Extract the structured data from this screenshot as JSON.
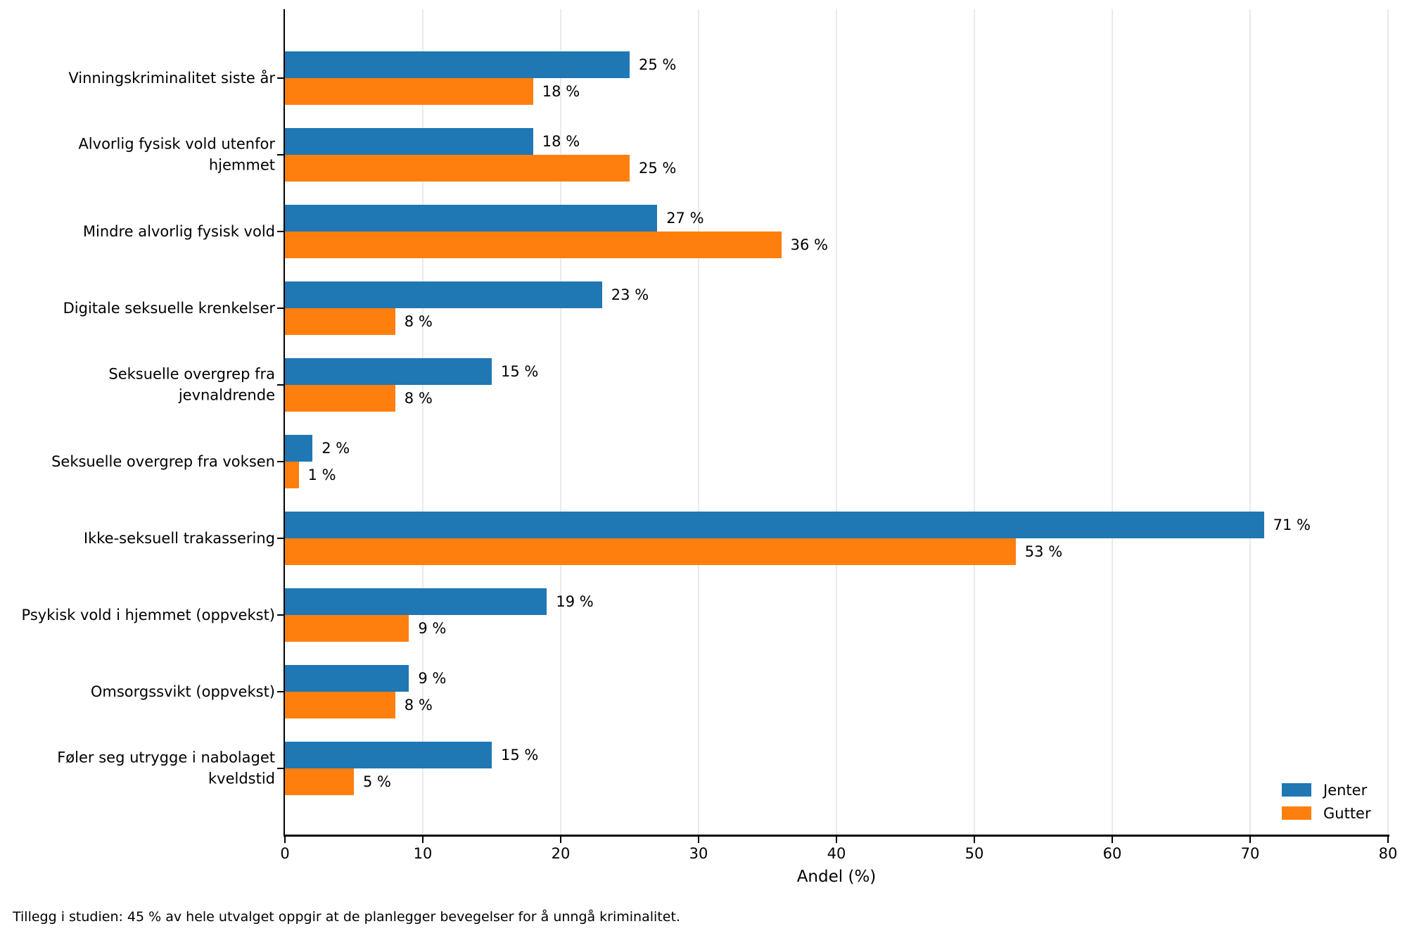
{
  "chart_data": {
    "type": "bar",
    "orientation": "horizontal",
    "title": "",
    "xlabel": "Andel (%)",
    "ylabel": "",
    "xlim": [
      0,
      80
    ],
    "xticks": [
      0,
      10,
      20,
      30,
      40,
      50,
      60,
      70,
      80
    ],
    "grid": true,
    "legend_position": "lower right",
    "value_label_suffix": " %",
    "categories": [
      "Vinningskriminalitet siste år",
      "Alvorlig fysisk vold utenfor\nhjemmet",
      "Mindre alvorlig fysisk vold",
      "Digitale seksuelle krenkelser",
      "Seksuelle overgrep fra\njevnaldrende",
      "Seksuelle overgrep fra voksen",
      "Ikke-seksuell trakassering",
      "Psykisk vold i hjemmet (oppvekst)",
      "Omsorgssvikt (oppvekst)",
      "Føler seg utrygge i nabolaget\nkveldstid"
    ],
    "series": [
      {
        "name": "Jenter",
        "color": "#1f77b4",
        "values": [
          25,
          18,
          27,
          23,
          15,
          2,
          71,
          19,
          9,
          15
        ]
      },
      {
        "name": "Gutter",
        "color": "#ff7f0e",
        "values": [
          18,
          25,
          36,
          8,
          8,
          1,
          53,
          9,
          8,
          5
        ]
      }
    ],
    "value_labels": {
      "Jenter": [
        "25 %",
        "18 %",
        "27 %",
        "23 %",
        "15 %",
        "2 %",
        "71 %",
        "19 %",
        "9 %",
        "15 %"
      ],
      "Gutter": [
        "18 %",
        "25 %",
        "36 %",
        "8 %",
        "8 %",
        "1 %",
        "53 %",
        "9 %",
        "8 %",
        "5 %"
      ]
    },
    "footnote": "Tillegg i studien: 45 % av hele utvalget oppgir at de planlegger bevegelser for å unngå kriminalitet."
  },
  "colors": {
    "jenter": "#1f77b4",
    "gutter": "#ff7f0e",
    "grid": "#eaeaea",
    "axis": "#000000",
    "background": "#ffffff"
  }
}
